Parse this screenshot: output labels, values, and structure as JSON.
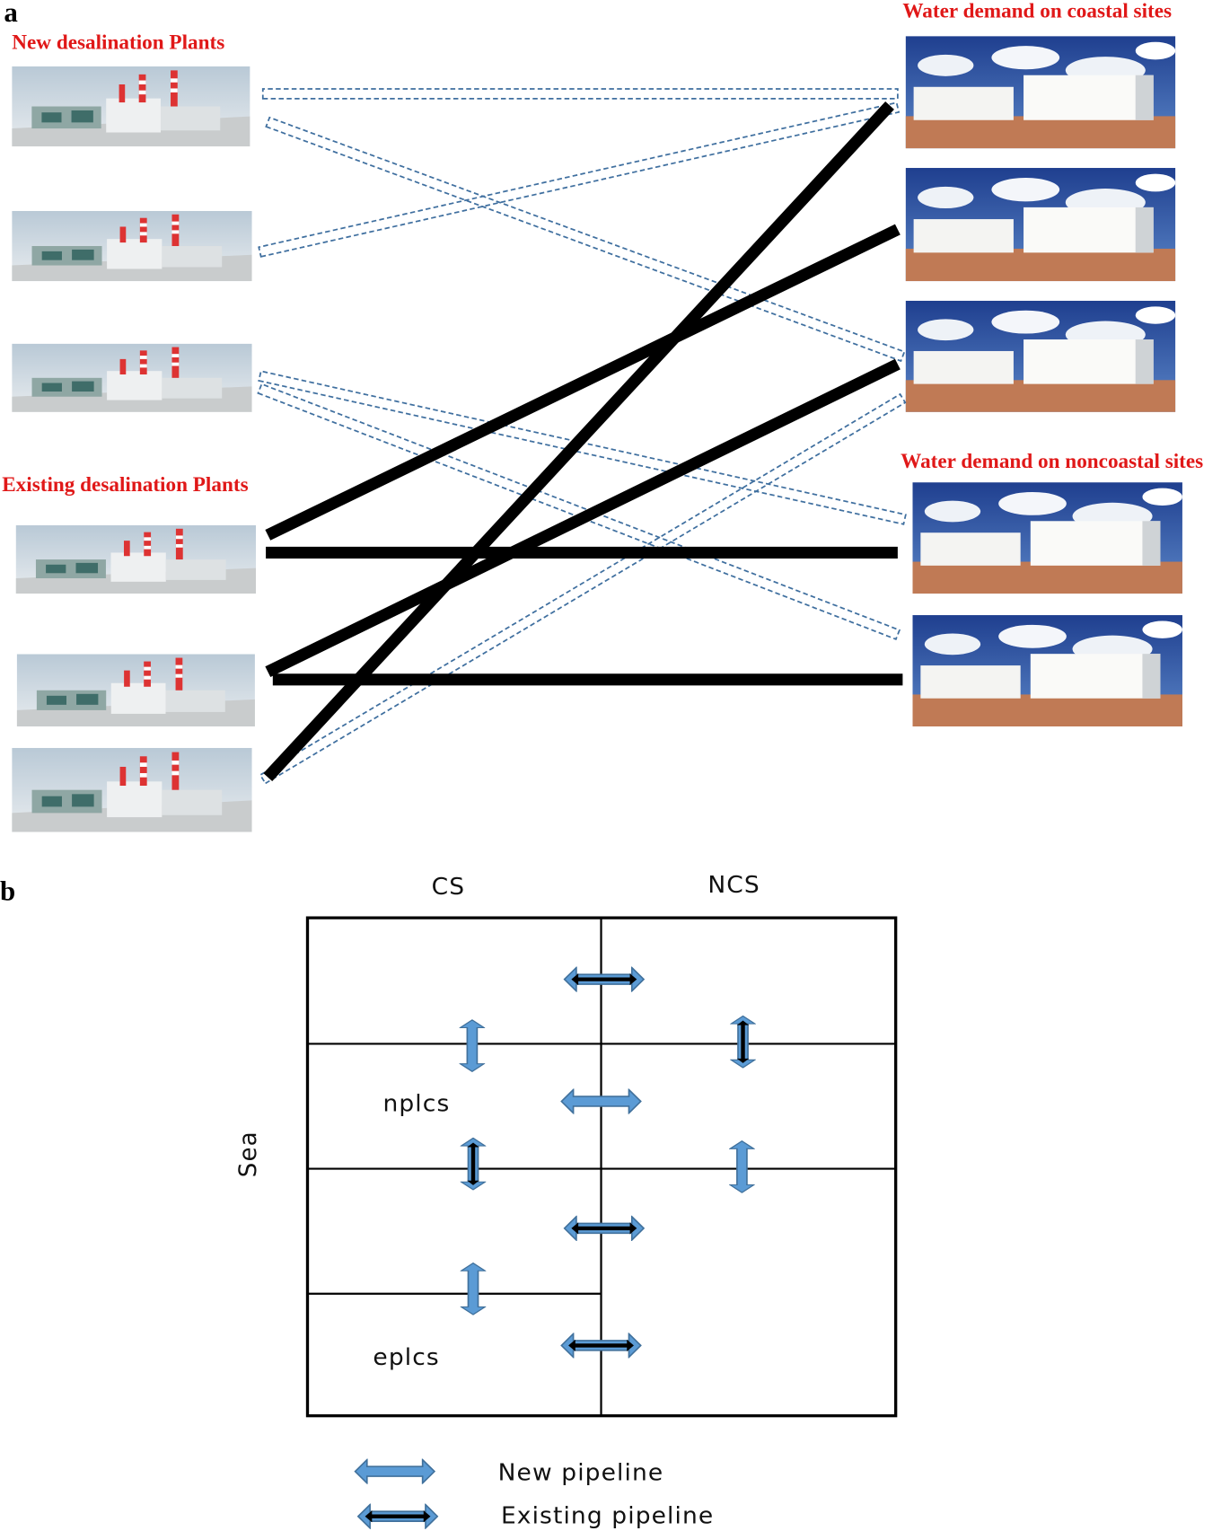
{
  "panel_a": {
    "label": "a",
    "new_plants_title": "New desalination Plants",
    "existing_plants_title": "Existing desalination Plants",
    "coastal_title": "Water demand on coastal sites",
    "noncoastal_title": "Water demand on noncoastal sites"
  },
  "panel_b": {
    "label": "b",
    "columns": [
      "CS",
      "NCS"
    ],
    "side_label": "Sea",
    "cells": [
      "nplcs",
      "eplcs"
    ]
  },
  "legend": {
    "new": "New pipeline",
    "existing": "Existing pipeline"
  }
}
